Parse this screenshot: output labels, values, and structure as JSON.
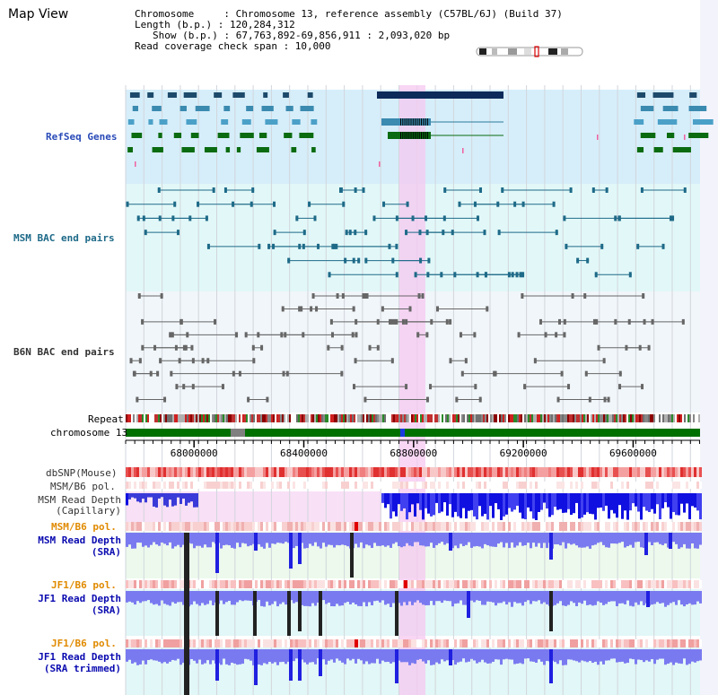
{
  "header": {
    "title": "Map View",
    "info_lines": [
      "Chromosome     : Chromosome 13, reference assembly (C57BL/6J) (Build 37)",
      "Length (b.p.) : 120,284,312",
      "Show (b.p.) : 67,763,892-69,856,911 : 2,093,020 bp",
      "Read coverage check span : 10,000"
    ]
  },
  "axis": {
    "ticks": [
      "68000000",
      "68400000",
      "68800000",
      "69200000",
      "69600000"
    ],
    "tick_values": [
      68000000,
      68400000,
      68800000,
      69200000,
      69600000
    ],
    "range": [
      67763892,
      69856911
    ]
  },
  "tracks": {
    "refseq": "RefSeq Genes",
    "msm_bac": "MSM BAC end pairs",
    "b6n_bac": "B6N BAC end pairs",
    "repeat": "Repeat",
    "chromosome": "chromosome 13",
    "dbsnp": "dbSNP(Mouse)",
    "msm_b6_pol_1": "MSM/B6 pol.",
    "msm_read_depth_cap_1": "MSM Read Depth",
    "msm_read_depth_cap_2": "(Capillary)",
    "msm_b6_pol_2": "MSM/B6 pol.",
    "msm_read_depth_sra_1": "MSM Read Depth",
    "msm_read_depth_sra_2": "(SRA)",
    "jf1_b6_pol_1": "JF1/B6 pol.",
    "jf1_read_depth_sra_1": "JF1 Read Depth",
    "jf1_read_depth_sra_2": "(SRA)",
    "jf1_b6_pol_2": "JF1/B6 pol.",
    "jf1_read_depth_trim_1": "JF1 Read Depth",
    "jf1_read_depth_trim_2": "(SRA trimmed)"
  },
  "colors": {
    "refseq_label": "#2a4bb8",
    "msm_label": "#1e6a88",
    "b6n_label": "#333333",
    "pol_label": "#e08a00",
    "depth_label": "#0a0ab0",
    "highlight": "#f6c8f0",
    "chromosome_bar": "#007000"
  }
}
